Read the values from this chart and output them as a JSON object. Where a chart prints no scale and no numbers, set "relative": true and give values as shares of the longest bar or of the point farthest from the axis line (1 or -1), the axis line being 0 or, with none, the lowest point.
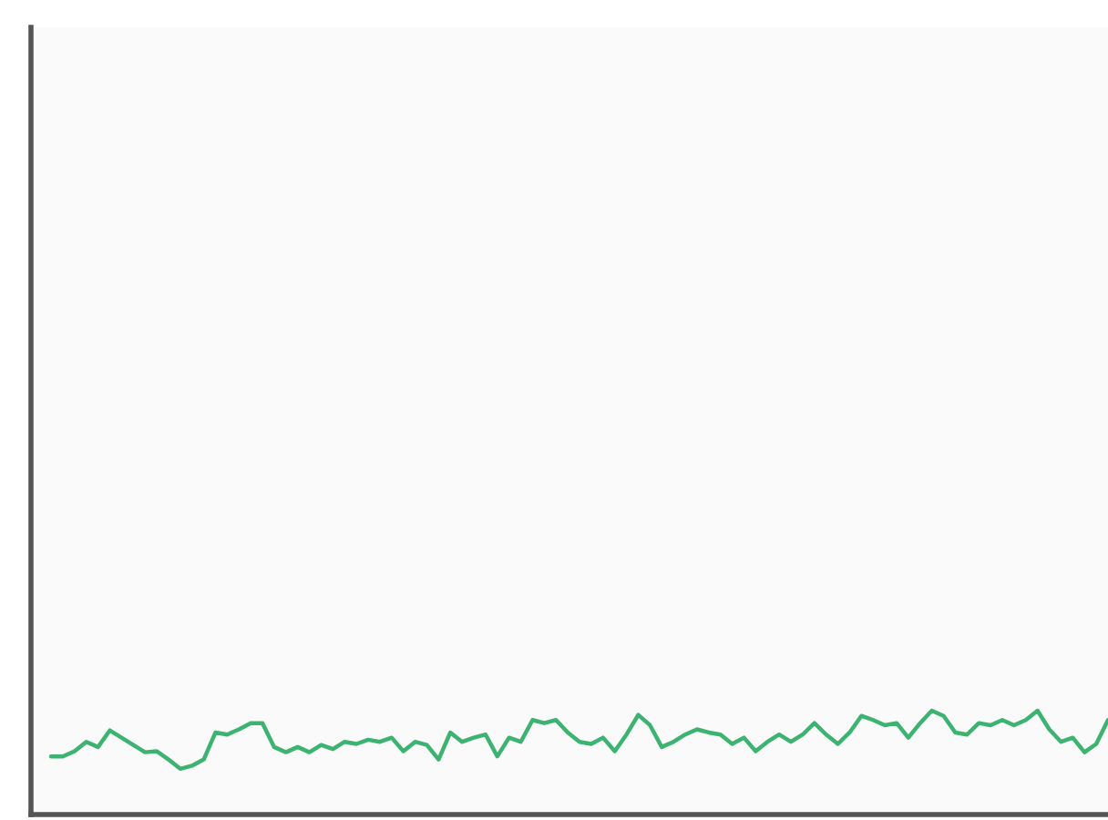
{
  "chart_data": {
    "type": "line",
    "relative": true,
    "marker": "none",
    "line_style": "solid",
    "categories": [
      null,
      null,
      null,
      null,
      null,
      null,
      null,
      null,
      null,
      null,
      null,
      null,
      null,
      null,
      null,
      null,
      null,
      null,
      null,
      null,
      null,
      null,
      null,
      null,
      null,
      null,
      null,
      null,
      null,
      null,
      null,
      null,
      null,
      null,
      null,
      null,
      null,
      null,
      null,
      null,
      null,
      null,
      null,
      null,
      null,
      null,
      null,
      null,
      null,
      null,
      null,
      null,
      null,
      null,
      null,
      null,
      null,
      null,
      null,
      null,
      null,
      null,
      null,
      null,
      null,
      null,
      null,
      null,
      null,
      null,
      null,
      null,
      null,
      null,
      null,
      null,
      null,
      null,
      null,
      null,
      null,
      null,
      null,
      null,
      null,
      null,
      null,
      null,
      null,
      null,
      null
    ],
    "series": [
      {
        "color": "#3cb371",
        "values": [
          0.56,
          0.56,
          0.61,
          0.7,
          0.65,
          0.81,
          0.74,
          0.67,
          0.6,
          0.61,
          0.53,
          0.44,
          0.47,
          0.53,
          0.79,
          0.77,
          0.82,
          0.88,
          0.88,
          0.65,
          0.6,
          0.65,
          0.6,
          0.67,
          0.63,
          0.7,
          0.68,
          0.72,
          0.7,
          0.74,
          0.61,
          0.7,
          0.67,
          0.53,
          0.79,
          0.7,
          0.74,
          0.77,
          0.56,
          0.74,
          0.7,
          0.91,
          0.88,
          0.91,
          0.79,
          0.7,
          0.68,
          0.74,
          0.61,
          0.77,
          0.96,
          0.86,
          0.65,
          0.7,
          0.77,
          0.82,
          0.79,
          0.77,
          0.68,
          0.74,
          0.61,
          0.7,
          0.77,
          0.7,
          0.77,
          0.88,
          0.77,
          0.68,
          0.79,
          0.95,
          0.91,
          0.86,
          0.88,
          0.74,
          0.88,
          1.0,
          0.95,
          0.79,
          0.77,
          0.88,
          0.86,
          0.91,
          0.86,
          0.91,
          1.0,
          0.82,
          0.7,
          0.74,
          0.6,
          0.68,
          0.91
        ]
      }
    ]
  }
}
